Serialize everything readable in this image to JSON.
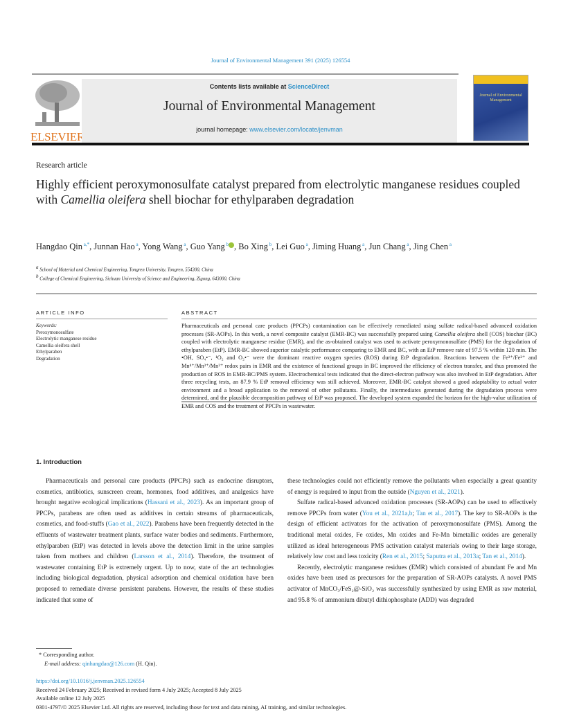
{
  "header": {
    "journal_ref": "Journal of Environmental Management 391 (2025) 126554",
    "publisher": "ELSEVIER",
    "contents_prefix": "Contents lists available at ",
    "contents_link": "ScienceDirect",
    "journal_title": "Journal of Environmental Management",
    "homepage_prefix": "journal homepage: ",
    "homepage_link": "www.elsevier.com/locate/jenvman",
    "cover_text": "Journal of Environmental Management"
  },
  "article": {
    "type": "Research article",
    "title": [
      {
        "text": "Highly efficient peroxymonosulfate catalyst prepared from electrolytic manganese residues coupled with "
      },
      {
        "text": "Camellia oleifera",
        "style": "italic"
      },
      {
        "text": " shell biochar for ethylparaben degradation"
      }
    ],
    "authors": [
      {
        "name": "Hangdao Qin",
        "sup": "a,*"
      },
      {
        "name": "Junnan Hao",
        "sup": "a"
      },
      {
        "name": "Yong Wang",
        "sup": "a"
      },
      {
        "name": "Guo Yang",
        "sup": "b",
        "orcid": true
      },
      {
        "name": "Bo Xing",
        "sup": "b"
      },
      {
        "name": "Lei Guo",
        "sup": "a"
      },
      {
        "name": "Jiming Huang",
        "sup": "a"
      },
      {
        "name": "Jun Chang",
        "sup": "a"
      },
      {
        "name": "Jing Chen",
        "sup": "a"
      }
    ],
    "affiliations": [
      {
        "sup": "a",
        "text": "School of Material and Chemical Engineering, Tongren University, Tongren, 554300, China"
      },
      {
        "sup": "b",
        "text": "College of Chemical Engineering, Sichuan University of Science and Engineering, Zigong, 643000, China"
      }
    ]
  },
  "article_info": {
    "heading": "ARTICLE INFO",
    "keywords_label": "Keywords:",
    "keywords": [
      "Peroxymonosulfate",
      "Electrolytic manganese residue",
      "Camellia oleifera shell",
      "Ethylparaben",
      "Degradation"
    ]
  },
  "abstract": {
    "heading": "ABSTRACT",
    "segments": [
      {
        "text": "Pharmaceuticals and personal care products (PPCPs) contamination can be effectively remediated using sulfate radical-based advanced oxidation processes (SR-AOPs). In this work, a novel composite catalyst (EMR-BC) was successfully prepared using "
      },
      {
        "text": "Camellia oleifera",
        "style": "italic"
      },
      {
        "text": " shell (COS) biochar (BC) coupled with electrolytic manganese residue (EMR), and the as-obtained catalyst was used to activate peroxymonosulfate (PMS) for the degradation of ethylparaben (EtP). EMR-BC showed superior catalytic performance comparing to EMR and BC, with an EtP remove rate of 97.5 % within 120 min. The •OH, SO₄•⁻, ¹O₂ and O₂•⁻ were the dominant reactive oxygen species (ROS) during EtP degradation. Reactions between the Fe³⁺/Fe²⁺ and Mn⁴⁺/Mn³⁺/Mn²⁺ redox pairs in EMR and the existence of functional groups in BC improved the efficiency of electron transfer, and thus promoted the production of ROS in EMR-BC/PMS system. Electrochemical tests indicated that the direct-electron pathway was also involved in EtP degradation. After three recycling tests, an 87.9 % EtP removal efficiency was still achieved. Moreover, EMR-BC catalyst showed a good adaptability to actual water environment and a broad application to the removal of other pollutants. Finally, the intermediates generated during the degradation process were determined, and the plausible decomposition pathway of EtP was proposed. The developed system expanded the horizon for the high-value utilization of EMR and COS and the treatment of PPCPs in wastewater."
      }
    ]
  },
  "introduction": {
    "heading": "1. Introduction",
    "left_paragraphs": [
      [
        {
          "text": "Pharmaceuticals and personal care products (PPCPs) such as endocrine disruptors, cosmetics, antibiotics, sunscreen cream, hormones, food additives, and analgesics have brought negative ecological implications ("
        },
        {
          "text": "Hassani et al., 2023",
          "style": "link"
        },
        {
          "text": "). As an important group of PPCPs, parabens are often used as additives in certain streams of pharmaceuticals, cosmetics, and food-stuffs ("
        },
        {
          "text": "Gao et al., 2022",
          "style": "link"
        },
        {
          "text": "). Parabens have been frequently detected in the effluents of wastewater treatment plants, surface water bodies and sediments. Furthermore, ethylparaben (EtP) was detected in levels above the detection limit in the urine samples taken from mothers and children ("
        },
        {
          "text": "Larsson et al., 2014",
          "style": "link"
        },
        {
          "text": "). Therefore, the treatment of wastewater containing EtP is extremely urgent. Up to now, state of the art technologies including biological degradation, physical adsorption and chemical oxidation have been proposed to remediate diverse persistent parabens. However, the results of these studies indicated that some of"
        }
      ]
    ],
    "right_paragraphs": [
      [
        {
          "text": "these technologies could not efficiently remove the pollutants when especially a great quantity of energy is required to input from the outside ("
        },
        {
          "text": "Nguyen et al., 2021",
          "style": "link"
        },
        {
          "text": ")."
        }
      ],
      [
        {
          "text": "Sulfate radical-based advanced oxidation processes (SR-AOPs) can be used to effectively remove PPCPs from water ("
        },
        {
          "text": "You et al., 2021a,b",
          "style": "link"
        },
        {
          "text": "; "
        },
        {
          "text": "Tan et al., 2017",
          "style": "link"
        },
        {
          "text": "). The key to SR-AOPs is the design of efficient activators for the activation of peroxymonosulfate (PMS). Among the traditional metal oxides, Fe oxides, Mn oxides and Fe-Mn bimetallic oxides are generally utilized as ideal heterogeneous PMS activation catalyst materials owing to their large storage, relatively low cost and less toxicity ("
        },
        {
          "text": "Ren et al., 2015",
          "style": "link"
        },
        {
          "text": "; "
        },
        {
          "text": "Saputra et al., 2013a",
          "style": "link"
        },
        {
          "text": "; "
        },
        {
          "text": "Tan et al., 2014",
          "style": "link"
        },
        {
          "text": ")."
        }
      ],
      [
        {
          "text": "Recently, electrolytic manganese residues (EMR) which consisted of abundant Fe and Mn oxides have been used as precursors for the preparation of SR-AOPs catalysts. A novel PMS activator of MnCO₃/FeS₂@-SiO₂ was successfully synthesized by using EMR as raw material, and 95.8 % of ammonium dibutyl dithiophosphate (ADD) was degraded"
        }
      ]
    ]
  },
  "footnotes": {
    "corresponding": "* Corresponding author.",
    "email_label": "E-mail address: ",
    "email": "qinhangdao@126.com",
    "email_suffix": " (H. Qin)."
  },
  "pub_info": {
    "doi": "https://doi.org/10.1016/j.jenvman.2025.126554",
    "dates": "Received 24 February 2025; Received in revised form 4 July 2025; Accepted 8 July 2025",
    "available": "Available online 12 July 2025",
    "copyright": "0301-4797/© 2025 Elsevier Ltd. All rights are reserved, including those for text and data mining, AI training, and similar technologies."
  },
  "colors": {
    "link": "#2a8fc8",
    "elsevier_orange": "#e0731c",
    "orcid_green": "#9cc43a",
    "header_box": "#ececec"
  }
}
